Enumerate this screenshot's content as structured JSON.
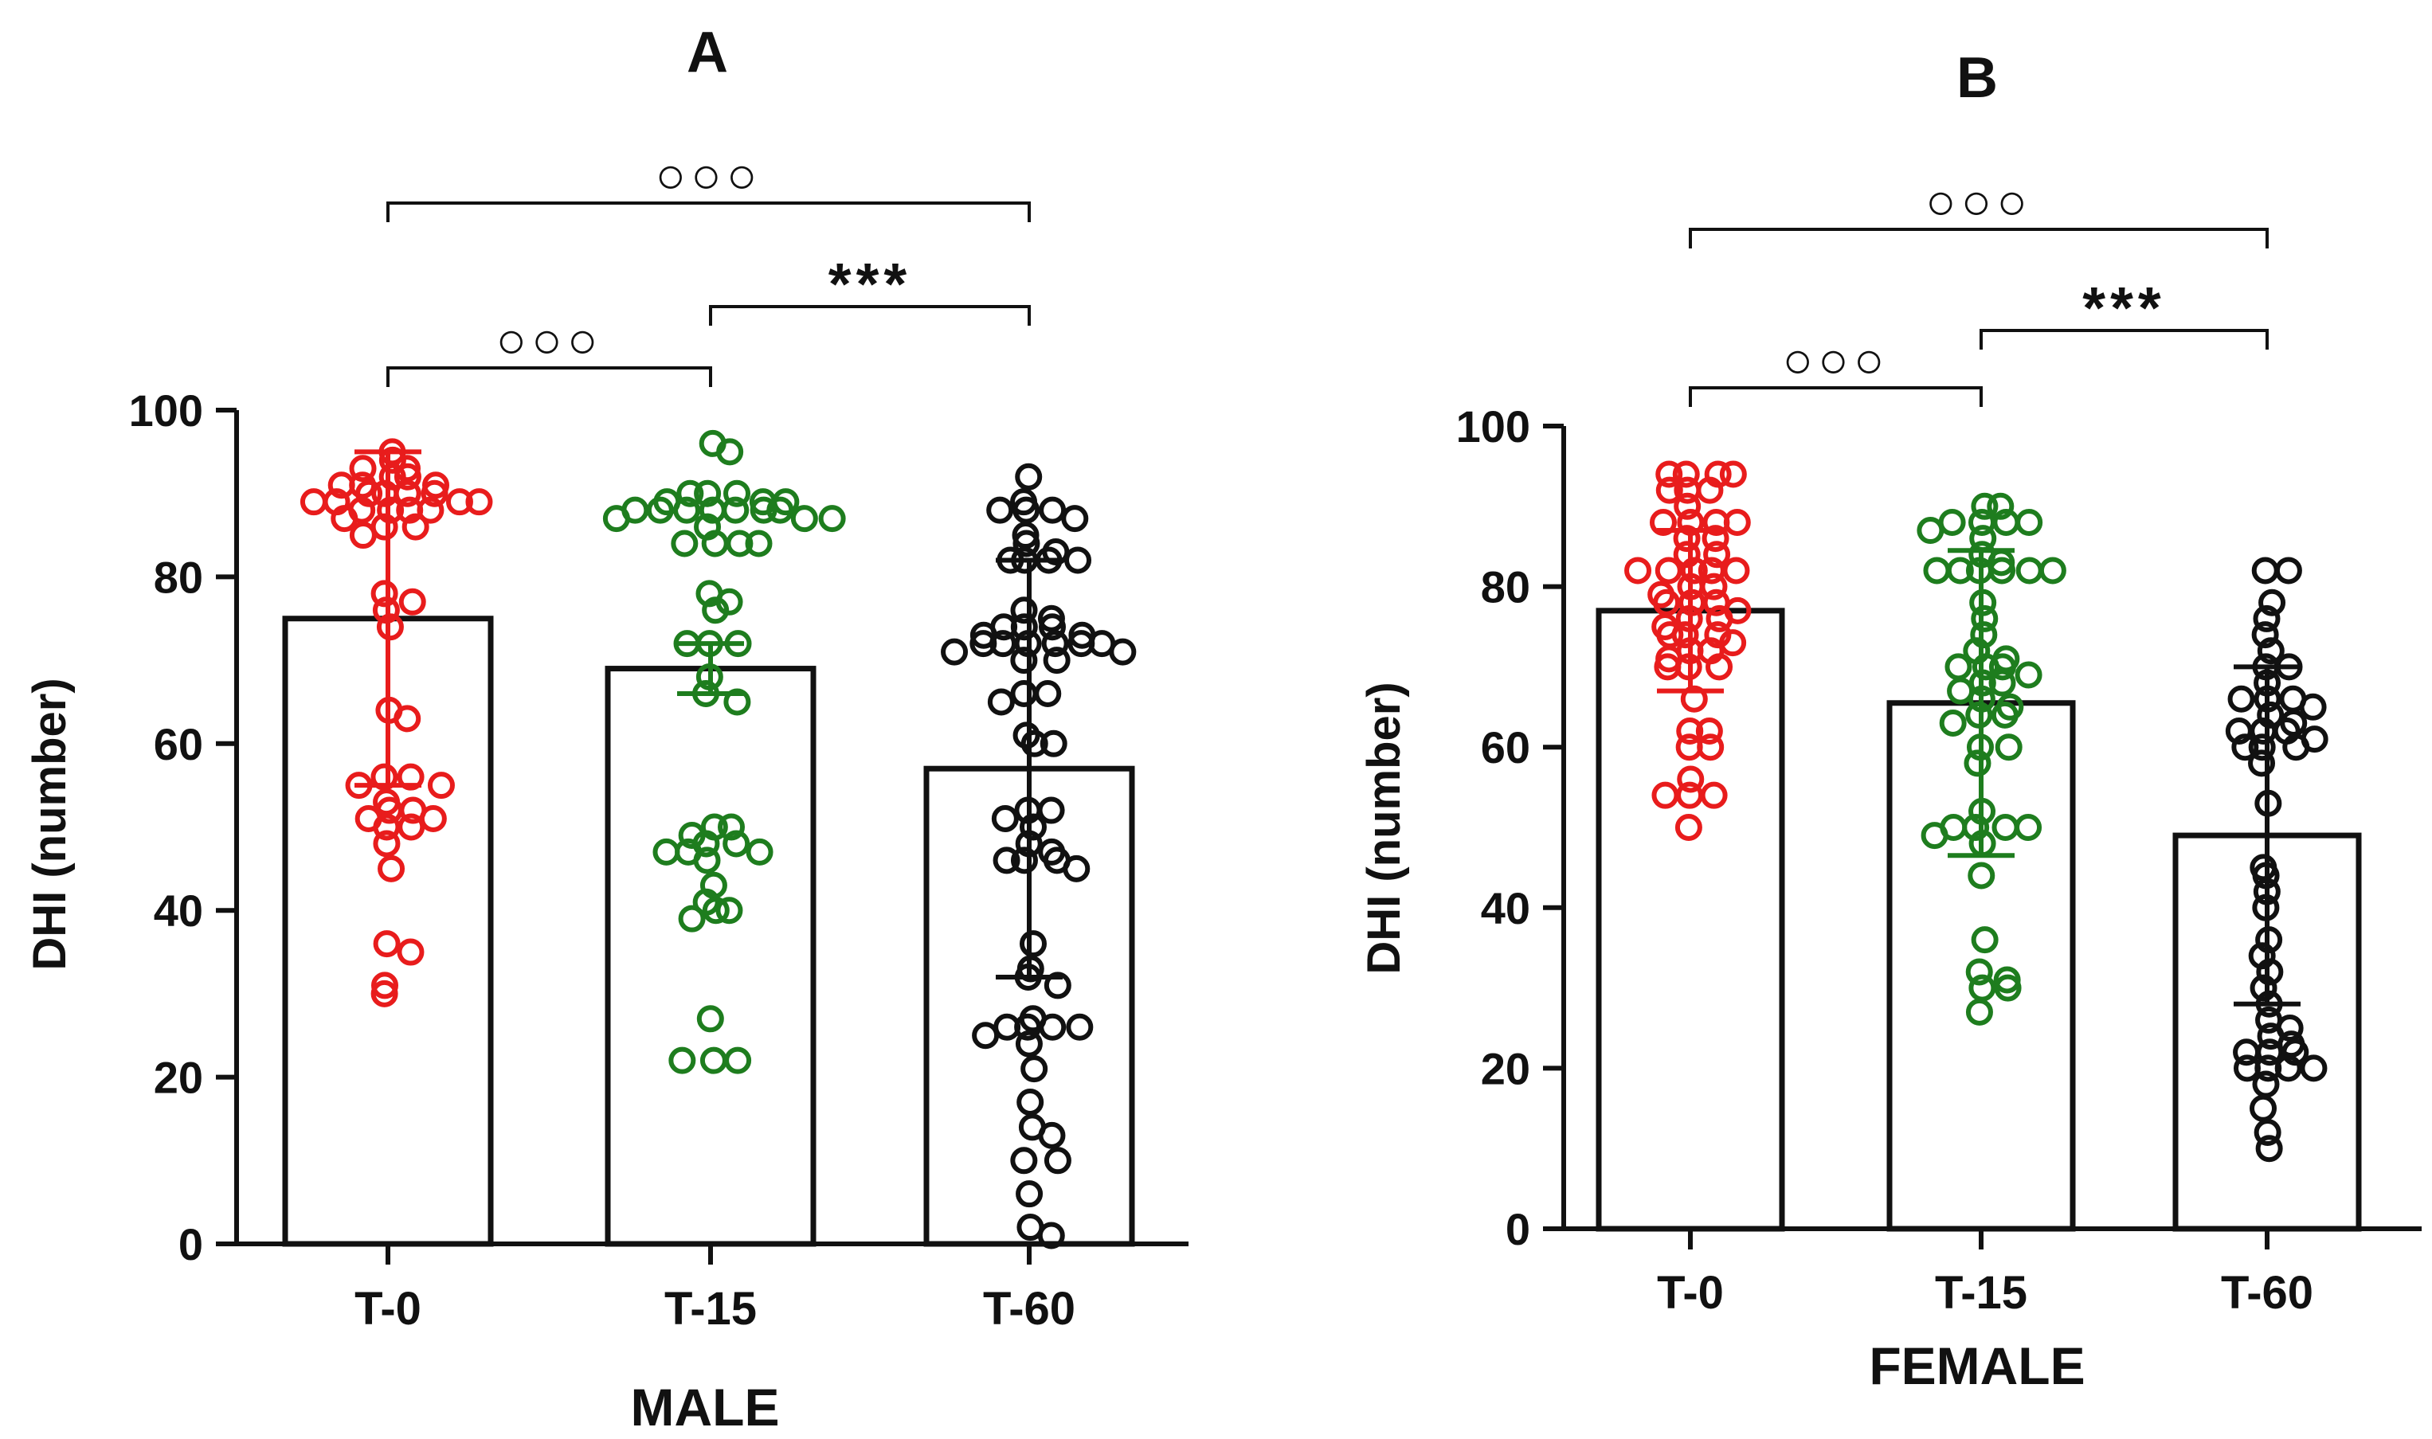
{
  "chart_data": [
    {
      "type": "bar",
      "panel": "A",
      "xlabel": "MALE",
      "ylabel": "DHI (number)",
      "ylim": [
        0,
        100
      ],
      "yticks": [
        0,
        20,
        40,
        60,
        80,
        100
      ],
      "categories": [
        "T-0",
        "T-15",
        "T-60"
      ],
      "values": [
        75,
        69,
        57
      ],
      "error": [
        20,
        3,
        25
      ],
      "colors": [
        "#e81c1c",
        "#1e7d1e",
        "#111111"
      ],
      "points": [
        [
          95,
          94,
          93,
          93,
          92,
          92,
          91,
          91,
          91,
          90,
          90,
          90,
          90,
          89,
          89,
          89,
          89,
          88,
          88,
          88,
          88,
          87,
          86,
          86,
          85,
          78,
          77,
          76,
          74,
          64,
          63,
          56,
          56,
          55,
          55,
          53,
          52,
          52,
          51,
          51,
          50,
          50,
          48,
          45,
          36,
          35,
          31,
          30
        ],
        [
          96,
          95,
          90,
          90,
          90,
          89,
          89,
          89,
          88,
          88,
          88,
          88,
          88,
          88,
          88,
          87,
          87,
          87,
          86,
          84,
          84,
          84,
          84,
          78,
          77,
          76,
          72,
          72,
          72,
          68,
          66,
          65,
          50,
          50,
          49,
          48,
          48,
          47,
          47,
          47,
          46,
          43,
          41,
          40,
          40,
          39,
          27,
          22,
          22,
          22
        ],
        [
          92,
          89,
          88,
          88,
          88,
          87,
          85,
          84,
          83,
          82,
          82,
          82,
          82,
          76,
          75,
          74,
          74,
          74,
          73,
          73,
          72,
          72,
          72,
          72,
          72,
          72,
          71,
          71,
          70,
          70,
          66,
          66,
          65,
          61,
          60,
          60,
          52,
          52,
          51,
          50,
          48,
          47,
          46,
          46,
          46,
          45,
          36,
          33,
          32,
          31,
          27,
          26,
          26,
          26,
          26,
          25,
          24,
          21,
          17,
          14,
          13,
          10,
          10,
          6,
          2,
          1
        ]
      ],
      "brackets": [
        {
          "from": 0,
          "to": 2,
          "label": "○○○"
        },
        {
          "from": 0,
          "to": 1,
          "label": "○○○"
        },
        {
          "from": 1,
          "to": 2,
          "label": "***"
        }
      ]
    },
    {
      "type": "bar",
      "panel": "B",
      "xlabel": "FEMALE",
      "ylabel": "DHI (number)",
      "ylim": [
        0,
        100
      ],
      "yticks": [
        0,
        20,
        40,
        60,
        80,
        100
      ],
      "categories": [
        "T-0",
        "T-15",
        "T-60"
      ],
      "values": [
        77,
        65.5,
        49
      ],
      "error": [
        10,
        19,
        21
      ],
      "colors": [
        "#e81c1c",
        "#1e7d1e",
        "#111111"
      ],
      "points": [
        [
          94,
          94,
          94,
          94,
          92,
          92,
          92,
          90,
          88,
          88,
          88,
          88,
          86,
          86,
          84,
          84,
          82,
          82,
          82,
          82,
          82,
          80,
          80,
          79,
          78,
          78,
          78,
          77,
          76,
          76,
          75,
          74,
          74,
          74,
          73,
          72,
          72,
          71,
          70,
          70,
          70,
          66,
          62,
          62,
          60,
          60,
          56,
          54,
          54,
          54,
          50
        ],
        [
          90,
          90,
          88,
          88,
          88,
          88,
          87,
          86,
          84,
          83,
          82,
          82,
          82,
          82,
          82,
          82,
          78,
          76,
          74,
          72,
          71,
          70,
          70,
          70,
          69,
          68,
          68,
          67,
          66,
          65,
          64,
          64,
          63,
          60,
          60,
          58,
          52,
          50,
          50,
          50,
          50,
          49,
          48,
          44,
          36,
          32,
          31,
          30,
          30,
          27
        ],
        [
          82,
          82,
          78,
          76,
          74,
          72,
          70,
          70,
          68,
          66,
          66,
          66,
          65,
          64,
          63,
          62,
          62,
          62,
          61,
          60,
          60,
          60,
          58,
          53,
          45,
          44,
          42,
          40,
          36,
          34,
          32,
          30,
          28,
          26,
          25,
          24,
          23,
          22,
          22,
          22,
          20,
          20,
          20,
          20,
          18,
          15,
          12,
          10
        ]
      ],
      "brackets": [
        {
          "from": 0,
          "to": 2,
          "label": "○○○"
        },
        {
          "from": 0,
          "to": 1,
          "label": "○○○"
        },
        {
          "from": 1,
          "to": 2,
          "label": "***"
        }
      ]
    }
  ]
}
